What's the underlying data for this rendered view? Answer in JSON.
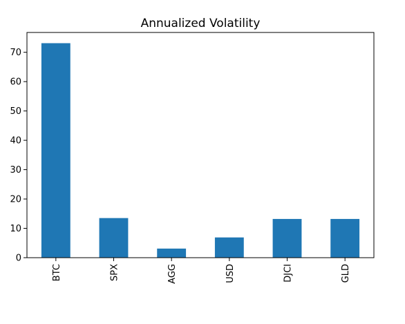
{
  "chart_data": {
    "type": "bar",
    "title": "Annualized Volatility",
    "xlabel": "",
    "ylabel": "",
    "categories": [
      "BTC",
      "SPX",
      "AGG",
      "USD",
      "DJCI",
      "GLD"
    ],
    "values": [
      73.1,
      13.5,
      3.1,
      6.9,
      13.2,
      13.2
    ],
    "ylim": [
      0,
      76.75
    ],
    "yticks": [
      0,
      10,
      20,
      30,
      40,
      50,
      60,
      70
    ],
    "grid": false,
    "legend": "none",
    "bar_color": "#1f77b4",
    "x_tick_rotation": "vertical"
  }
}
